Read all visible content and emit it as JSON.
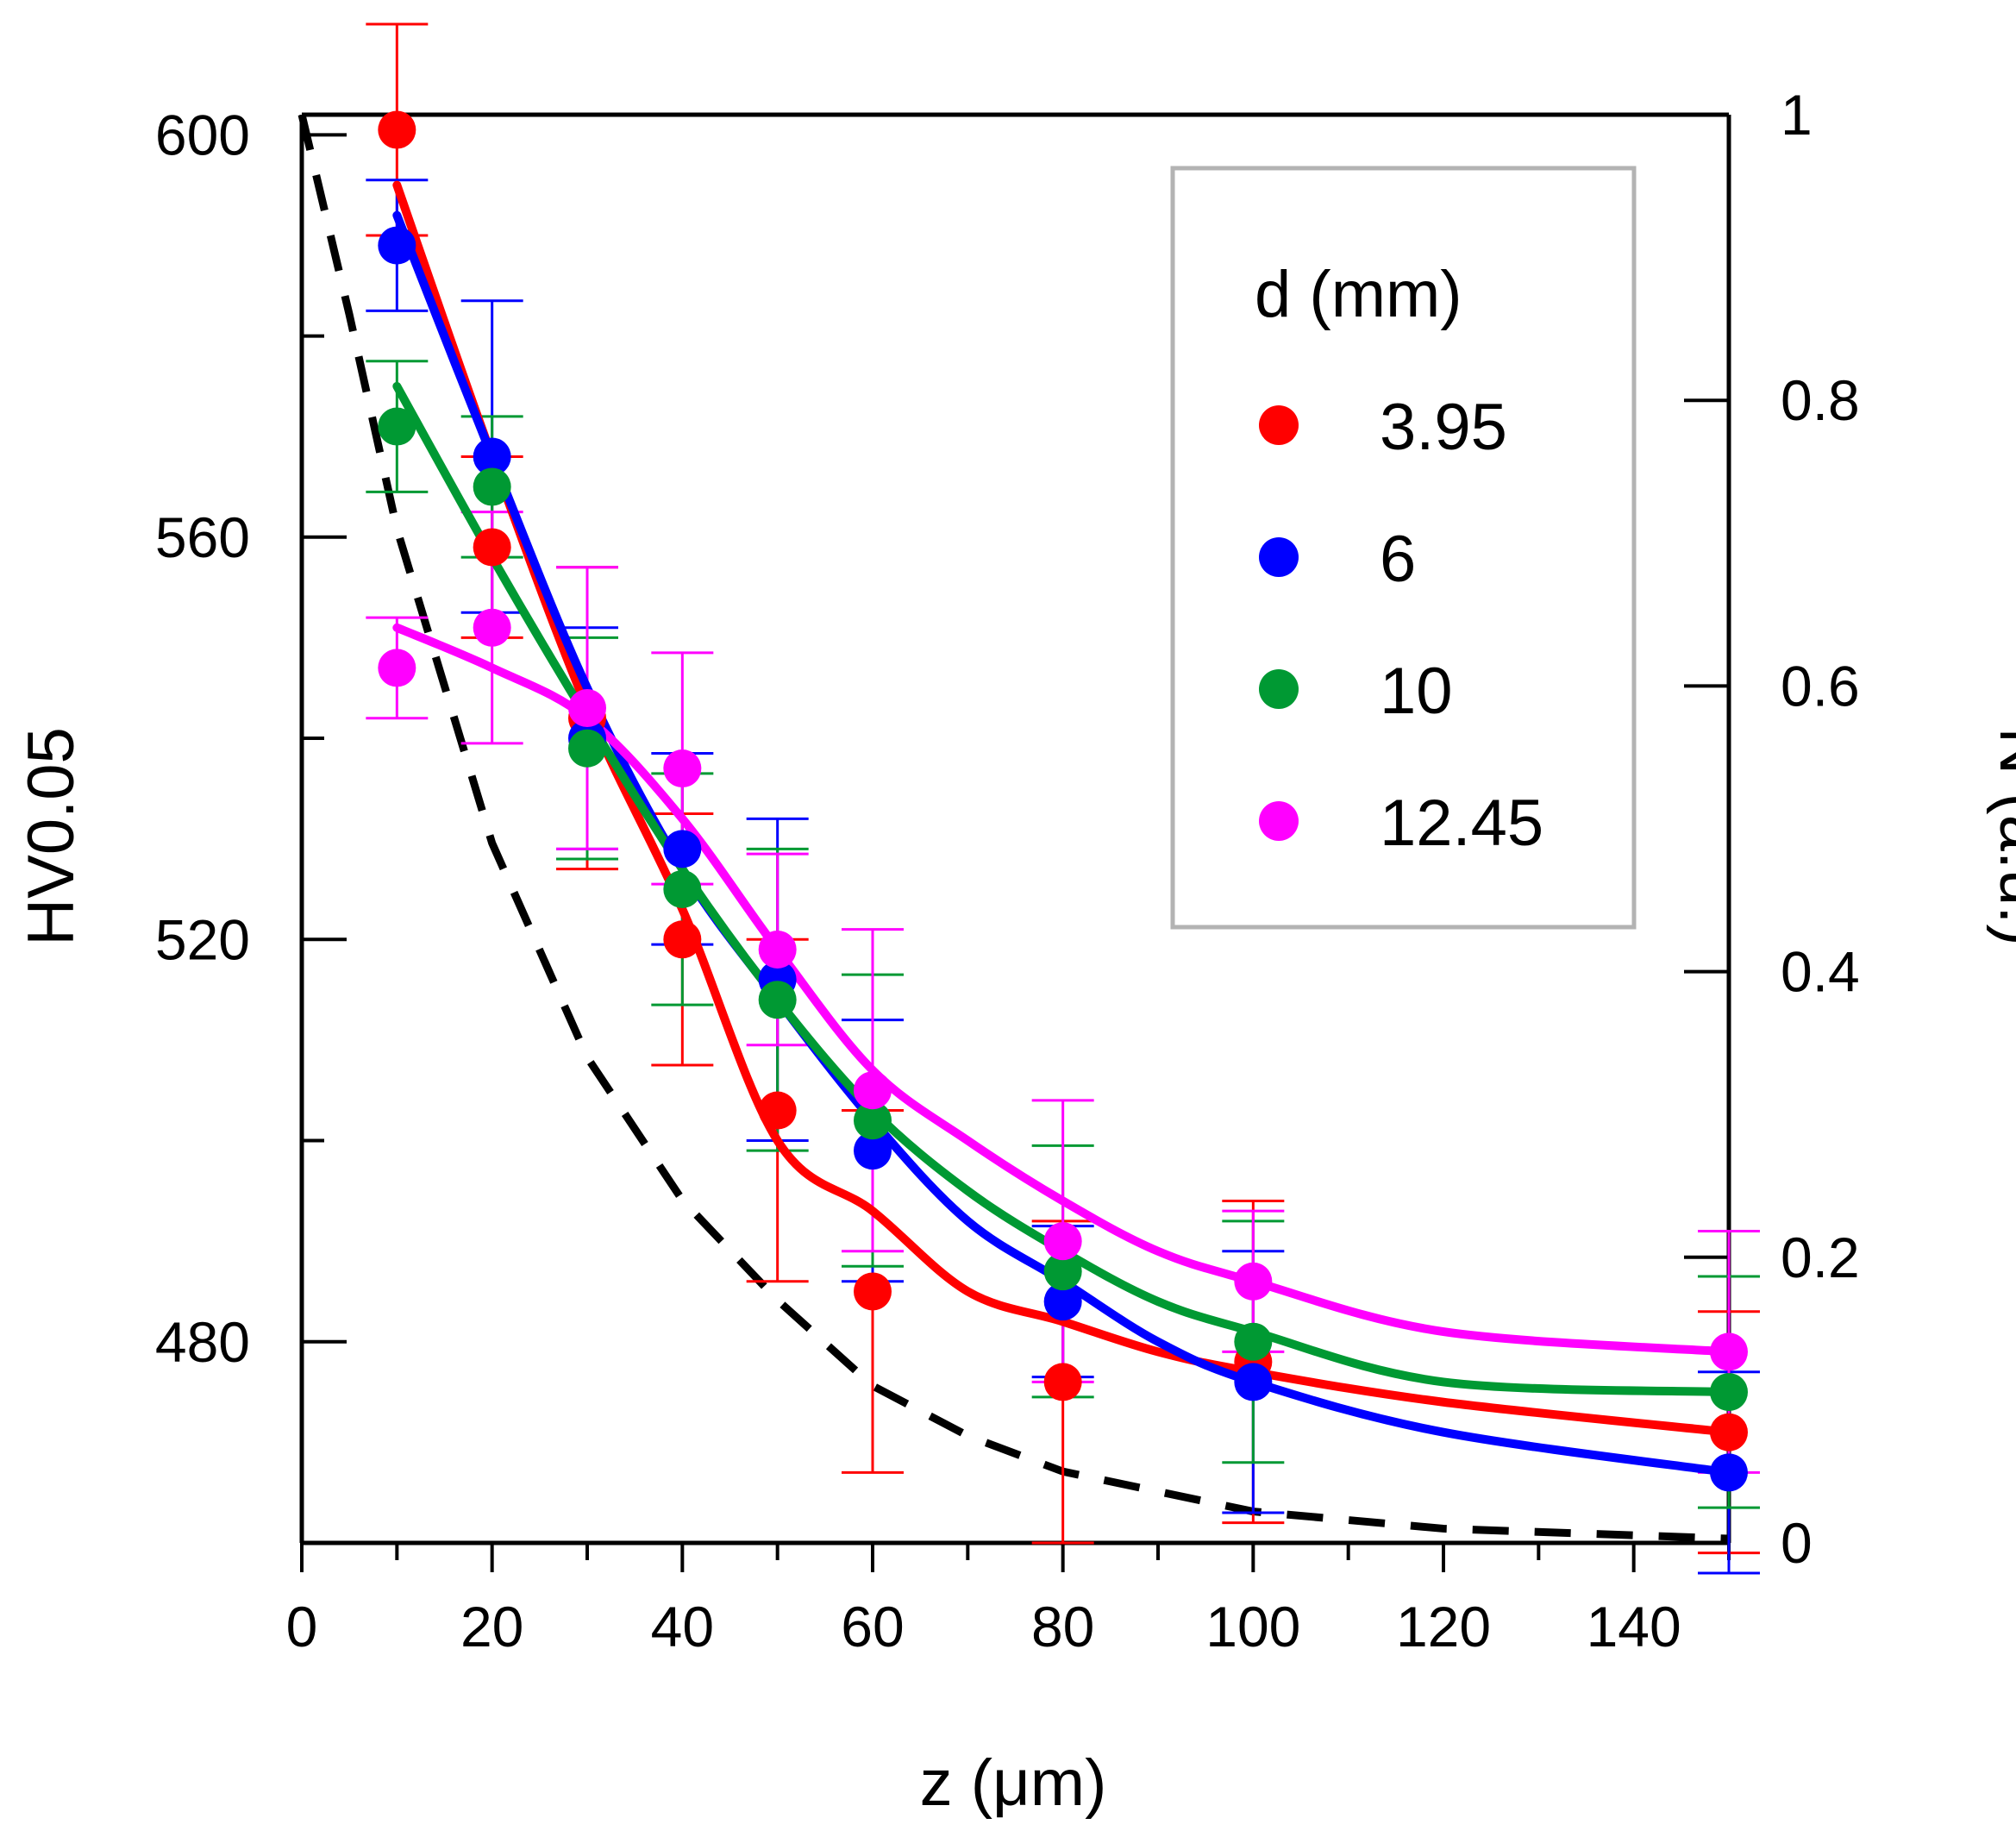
{
  "chart_data": {
    "type": "scatter",
    "xlabel": "z (μm)",
    "ylabel": "HV0.05",
    "y2label": "N (a.u.)",
    "xlim": [
      0,
      150
    ],
    "ylim": [
      460,
      602
    ],
    "y2lim": [
      0,
      1
    ],
    "x_ticks": [
      0,
      20,
      40,
      60,
      80,
      100,
      120,
      140
    ],
    "x_minor_ticks": [
      10,
      30,
      50,
      70,
      90,
      110,
      130,
      150
    ],
    "y_ticks": [
      480,
      520,
      560,
      600
    ],
    "y_minor_ticks": [
      500,
      540,
      580
    ],
    "y2_ticks": [
      0,
      0.2,
      0.4,
      0.6,
      0.8,
      1
    ],
    "y2_tick_labels": [
      "0",
      "0.2",
      "0.4",
      "0.6",
      "0.8",
      "1"
    ],
    "grid": false,
    "legend": {
      "title": "d (mm)",
      "position": "top-right"
    },
    "series": [
      {
        "name": "3.95",
        "color": "#ff0000",
        "points": [
          {
            "x": 10,
            "y": 600.5,
            "err": 10.5
          },
          {
            "x": 20,
            "y": 559,
            "err": 9
          },
          {
            "x": 30,
            "y": 542,
            "err": 15
          },
          {
            "x": 40,
            "y": 520,
            "err": 12.5
          },
          {
            "x": 50,
            "y": 503,
            "err": 17
          },
          {
            "x": 60,
            "y": 485,
            "err": 18
          },
          {
            "x": 80,
            "y": 476,
            "err": 16
          },
          {
            "x": 100,
            "y": 478,
            "err": 16
          },
          {
            "x": 150,
            "y": 471,
            "err": 12
          }
        ],
        "fit": [
          [
            10,
            595
          ],
          [
            20,
            568
          ],
          [
            30,
            543
          ],
          [
            40,
            523
          ],
          [
            50,
            500
          ],
          [
            60,
            493
          ],
          [
            70,
            485
          ],
          [
            80,
            482
          ],
          [
            90,
            479
          ],
          [
            100,
            477
          ],
          [
            120,
            474
          ],
          [
            150,
            471
          ]
        ]
      },
      {
        "name": "6",
        "color": "#0000ff",
        "points": [
          {
            "x": 10,
            "y": 589,
            "err": 6.5
          },
          {
            "x": 20,
            "y": 568,
            "err": 15.5
          },
          {
            "x": 30,
            "y": 540,
            "err": 11
          },
          {
            "x": 40,
            "y": 529,
            "err": 9.5
          },
          {
            "x": 50,
            "y": 516,
            "err": 16
          },
          {
            "x": 60,
            "y": 499,
            "err": 13
          },
          {
            "x": 80,
            "y": 484,
            "err": 7.5
          },
          {
            "x": 100,
            "y": 476,
            "err": 13
          },
          {
            "x": 150,
            "y": 467,
            "err": 10
          }
        ],
        "fit": [
          [
            10,
            592
          ],
          [
            20,
            568
          ],
          [
            30,
            545
          ],
          [
            40,
            527
          ],
          [
            50,
            514
          ],
          [
            60,
            502
          ],
          [
            70,
            492
          ],
          [
            80,
            486
          ],
          [
            90,
            480
          ],
          [
            100,
            476
          ],
          [
            120,
            471
          ],
          [
            150,
            467
          ]
        ]
      },
      {
        "name": "10",
        "color": "#009933",
        "points": [
          {
            "x": 10,
            "y": 571,
            "err": 6.5
          },
          {
            "x": 20,
            "y": 565,
            "err": 7
          },
          {
            "x": 30,
            "y": 539,
            "err": 11
          },
          {
            "x": 40,
            "y": 525,
            "err": 11.5
          },
          {
            "x": 50,
            "y": 514,
            "err": 15
          },
          {
            "x": 60,
            "y": 502,
            "err": 14.5
          },
          {
            "x": 80,
            "y": 487,
            "err": 12.5
          },
          {
            "x": 100,
            "y": 480,
            "err": 12
          },
          {
            "x": 150,
            "y": 475,
            "err": 11.5
          }
        ],
        "fit": [
          [
            10,
            575
          ],
          [
            20,
            558
          ],
          [
            30,
            542
          ],
          [
            40,
            527
          ],
          [
            50,
            514
          ],
          [
            60,
            503
          ],
          [
            70,
            495
          ],
          [
            80,
            489
          ],
          [
            90,
            484
          ],
          [
            100,
            481
          ],
          [
            120,
            476
          ],
          [
            150,
            475
          ]
        ]
      },
      {
        "name": "12.45",
        "color": "#ff00ff",
        "points": [
          {
            "x": 10,
            "y": 547,
            "err": 5
          },
          {
            "x": 20,
            "y": 551,
            "err": 11.5
          },
          {
            "x": 30,
            "y": 543,
            "err": 14
          },
          {
            "x": 40,
            "y": 537,
            "err": 11.5
          },
          {
            "x": 50,
            "y": 519,
            "err": 9.5
          },
          {
            "x": 60,
            "y": 505,
            "err": 16
          },
          {
            "x": 80,
            "y": 490,
            "err": 14
          },
          {
            "x": 100,
            "y": 486,
            "err": 7
          },
          {
            "x": 150,
            "y": 479,
            "err": 12
          }
        ],
        "fit": [
          [
            10,
            551
          ],
          [
            20,
            547
          ],
          [
            30,
            542
          ],
          [
            40,
            532
          ],
          [
            50,
            519
          ],
          [
            60,
            507
          ],
          [
            70,
            500
          ],
          [
            80,
            494
          ],
          [
            90,
            489
          ],
          [
            100,
            486
          ],
          [
            120,
            481
          ],
          [
            150,
            479
          ]
        ]
      }
    ],
    "dashed_curve": {
      "axis": "right",
      "color": "#000000",
      "points": [
        [
          0,
          1
        ],
        [
          5,
          0.86
        ],
        [
          10,
          0.71
        ],
        [
          15,
          0.6
        ],
        [
          20,
          0.49
        ],
        [
          30,
          0.34
        ],
        [
          40,
          0.24
        ],
        [
          50,
          0.17
        ],
        [
          60,
          0.11
        ],
        [
          70,
          0.075
        ],
        [
          80,
          0.05
        ],
        [
          100,
          0.022
        ],
        [
          120,
          0.01
        ],
        [
          150,
          0.003
        ]
      ]
    }
  }
}
